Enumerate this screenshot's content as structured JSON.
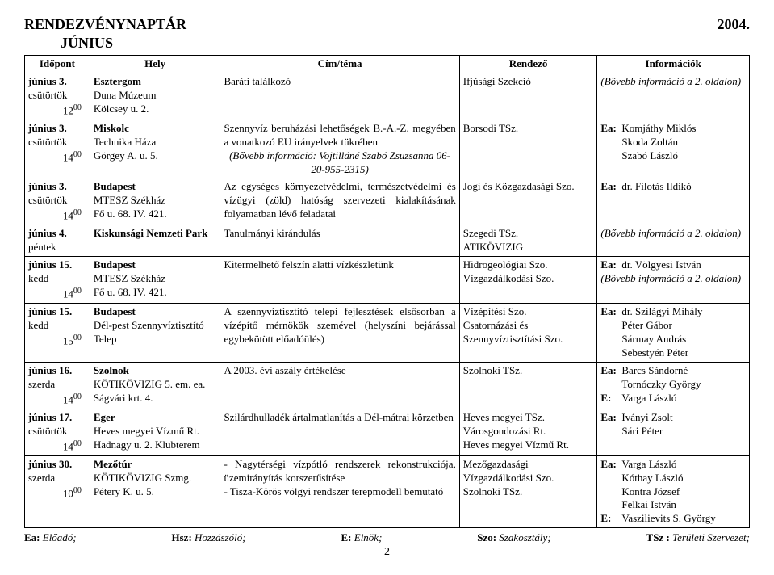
{
  "doc": {
    "title": "RENDEZVÉNYNAPTÁR",
    "year": "2004.",
    "subtitle": "JÚNIUS",
    "page_number": "2"
  },
  "columns": {
    "date": "Időpont",
    "place": "Hely",
    "topic": "Cím/téma",
    "organizer": "Rendező",
    "info": "Információk"
  },
  "rows": [
    {
      "date_main": "június 3.",
      "date_day": "csütörtök",
      "date_time": "12",
      "date_time_sup": "00",
      "place": "Esztergom\nDuna Múzeum\nKölcsey u. 2.",
      "place_boldline": 0,
      "topic": "Baráti találkozó",
      "organizer": "Ifjúsági Szekció",
      "info_plain": "(Bővebb információ a 2. oldalon)",
      "info_italic": true
    },
    {
      "date_main": "június 3.",
      "date_day": "csütörtök",
      "date_time": "14",
      "date_time_sup": "00",
      "place": "Miskolc\nTechnika Háza\nGörgey A. u. 5.",
      "place_boldline": 0,
      "topic": "Szennyvíz beruházási lehetőségek B.-A.-Z. megyében a vonatkozó EU irányelvek tükrében",
      "topic_extra": "(Bővebb információ: Vojtilláné Szabó Zsuzsanna 06-20-955-2315)",
      "topic_extra_italic": true,
      "organizer": "Borsodi TSz.",
      "info_lines": [
        {
          "key": "Ea:",
          "val": "Komjáthy Miklós"
        },
        {
          "key": "",
          "val": "Skoda Zoltán"
        },
        {
          "key": "",
          "val": "Szabó László"
        }
      ]
    },
    {
      "date_main": "június 3.",
      "date_day": "csütörtök",
      "date_time": "14",
      "date_time_sup": "00",
      "place": "Budapest\nMTESZ Székház\nFő u. 68. IV. 421.",
      "place_boldline": 0,
      "topic": "Az egységes környezetvédelmi, természetvédelmi és vízügyi (zöld) hatóság szervezeti kialakításának folyamatban lévő feladatai",
      "organizer": "Jogi és Közgazdasági Szo.",
      "info_lines": [
        {
          "key": "Ea:",
          "val": "dr. Filotás Ildikó"
        }
      ]
    },
    {
      "date_main": "június 4.",
      "date_day": "péntek",
      "place": "Kiskunsági Nemzeti Park",
      "place_boldline": 0,
      "topic": "Tanulmányi kirándulás",
      "organizer": "Szegedi TSz.\nATIKÖVIZIG",
      "info_plain": "(Bővebb információ a 2. oldalon)",
      "info_italic": true
    },
    {
      "date_main": "június 15.",
      "date_day": "kedd",
      "date_time": "14",
      "date_time_sup": "00",
      "place": "Budapest\nMTESZ Székház\nFő u. 68. IV. 421.",
      "place_boldline": 0,
      "topic": "Kitermelhető felszín alatti vízkészletünk",
      "organizer": "Hidrogeológiai Szo.\nVízgazdálkodási Szo.",
      "info_lines": [
        {
          "key": "Ea:",
          "val": "dr. Völgyesi István"
        }
      ],
      "info_plain": "(Bővebb információ a 2. oldalon)",
      "info_italic": true
    },
    {
      "date_main": "június 15.",
      "date_day": "kedd",
      "date_time": "15",
      "date_time_sup": "00",
      "place": "Budapest\nDél-pest Szennyvíztisztító Telep",
      "place_boldline": 0,
      "topic": "A szennyvíztisztító telepi fejlesztések elsősorban a vízépítő mérnökök szemével (helyszíni bejárással egybekötött előadóülés)",
      "organizer": "Vízépítési Szo.\nCsatornázási és Szennyvíztisztítási Szo.",
      "info_lines": [
        {
          "key": "Ea:",
          "val": "dr. Szilágyi Mihály"
        },
        {
          "key": "",
          "val": "Péter Gábor"
        },
        {
          "key": "",
          "val": "Sármay András"
        },
        {
          "key": "",
          "val": "Sebestyén Péter"
        }
      ]
    },
    {
      "date_main": "június 16.",
      "date_day": "szerda",
      "date_time": "14",
      "date_time_sup": "00",
      "place": "Szolnok\nKÖTIKÖVIZIG 5. em. ea.\nSágvári krt. 4.",
      "place_boldline": 0,
      "topic": "A 2003. évi aszály értékelése",
      "organizer": "Szolnoki TSz.",
      "info_lines": [
        {
          "key": "Ea:",
          "val": "Barcs Sándorné"
        },
        {
          "key": "",
          "val": "Tornóczky György"
        },
        {
          "key": "E:",
          "val": "Varga László"
        }
      ]
    },
    {
      "date_main": "június 17.",
      "date_day": "csütörtök",
      "date_time": "14",
      "date_time_sup": "00",
      "place": "Eger\nHeves megyei Vízmű Rt.\nHadnagy u. 2. Klubterem",
      "place_boldline": 0,
      "topic": "Szilárdhulladék ártalmatlanítás a Dél-mátrai körzetben",
      "organizer": "Heves megyei TSz.\nVárosgondozási Rt.\nHeves megyei Vízmű Rt.",
      "info_lines": [
        {
          "key": "Ea:",
          "val": "Iványi Zsolt"
        },
        {
          "key": "",
          "val": "Sári Péter"
        }
      ]
    },
    {
      "date_main": "június 30.",
      "date_day": "szerda",
      "date_time": "10",
      "date_time_sup": "00",
      "place": "Mezőtúr\nKÖTIKÖVIZIG Szmg.\nPétery K. u. 5.",
      "place_boldline": 0,
      "topic": "- Nagytérségi vízpótló rendszerek rekonstrukciója, üzemirányítás korszerűsítése\n- Tisza-Körös völgyi rendszer terepmodell bemutató",
      "organizer": "Mezőgazdasági Vízgazdálkodási Szo.\nSzolnoki TSz.",
      "info_lines": [
        {
          "key": "Ea:",
          "val": "Varga László"
        },
        {
          "key": "",
          "val": "Kóthay László"
        },
        {
          "key": "",
          "val": "Kontra József"
        },
        {
          "key": "",
          "val": "Felkai István"
        },
        {
          "key": "E:",
          "val": "Vaszilievits S. György"
        }
      ]
    }
  ],
  "legend": [
    {
      "key": "Ea:",
      "val": "Előadó;"
    },
    {
      "key": "Hsz:",
      "val": "Hozzászóló;"
    },
    {
      "key": "E:",
      "val": "Elnök;"
    },
    {
      "key": "Szo:",
      "val": "Szakosztály;"
    },
    {
      "key": "TSz :",
      "val": "Területi Szervezet;"
    }
  ]
}
